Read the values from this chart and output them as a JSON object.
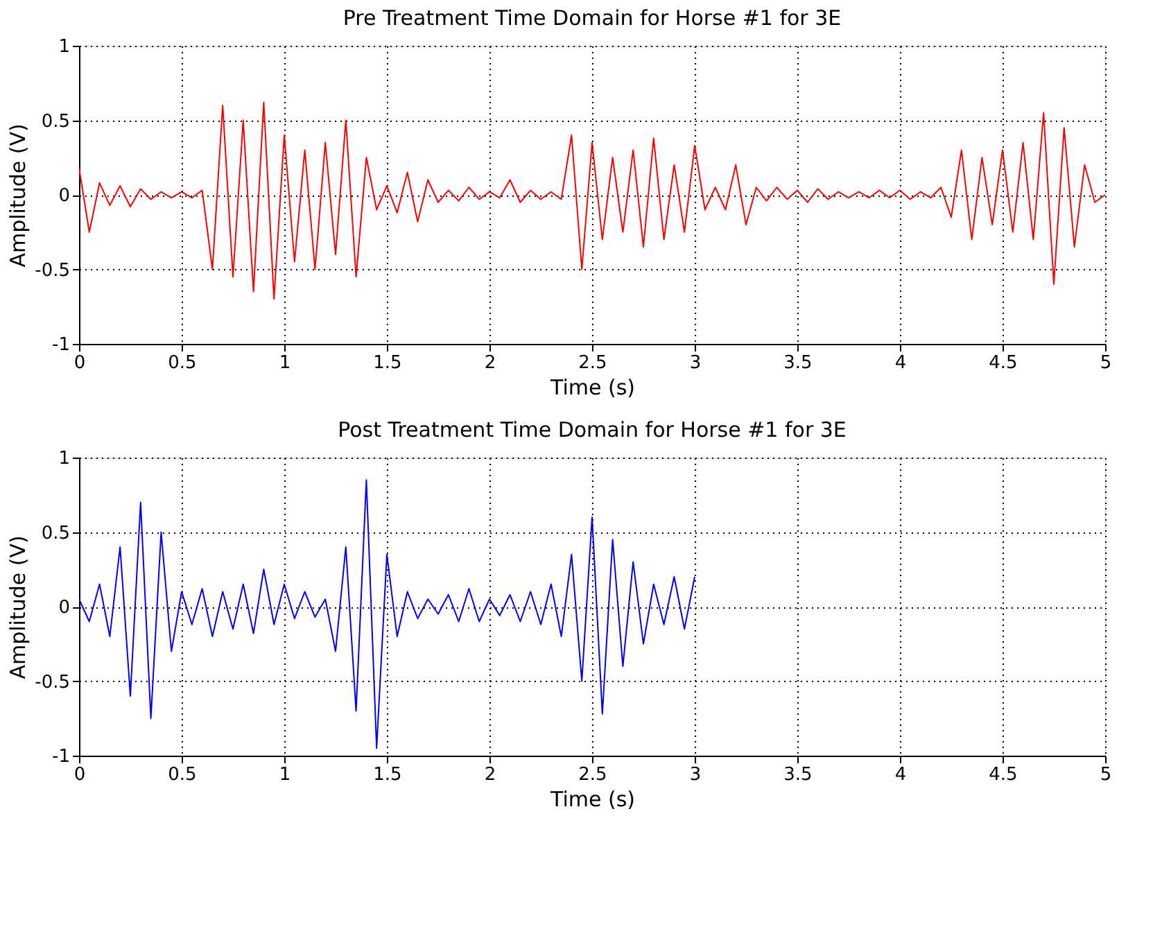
{
  "chart_data": [
    {
      "type": "line",
      "title": "Pre Treatment Time Domain for Horse #1 for 3E",
      "xlabel": "Time (s)",
      "ylabel": "Amplitude (V)",
      "xlim": [
        0,
        5
      ],
      "ylim": [
        -1,
        1
      ],
      "xticks": [
        0,
        0.5,
        1,
        1.5,
        2,
        2.5,
        3,
        3.5,
        4,
        4.5,
        5
      ],
      "yticks": [
        -1,
        -0.5,
        0,
        0.5,
        1
      ],
      "grid": true,
      "marker": "none",
      "line_style": "solid",
      "x": [
        0,
        0.05,
        0.1,
        0.15,
        0.2,
        0.25,
        0.3,
        0.35,
        0.4,
        0.45,
        0.5,
        0.55,
        0.6,
        0.65,
        0.7,
        0.75,
        0.8,
        0.85,
        0.9,
        0.95,
        1.0,
        1.05,
        1.1,
        1.15,
        1.2,
        1.25,
        1.3,
        1.35,
        1.4,
        1.45,
        1.5,
        1.55,
        1.6,
        1.65,
        1.7,
        1.75,
        1.8,
        1.85,
        1.9,
        1.95,
        2.0,
        2.05,
        2.1,
        2.15,
        2.2,
        2.25,
        2.3,
        2.35,
        2.4,
        2.45,
        2.5,
        2.55,
        2.6,
        2.65,
        2.7,
        2.75,
        2.8,
        2.85,
        2.9,
        2.95,
        3.0,
        3.05,
        3.1,
        3.15,
        3.2,
        3.25,
        3.3,
        3.35,
        3.4,
        3.45,
        3.5,
        3.55,
        3.6,
        3.65,
        3.7,
        3.75,
        3.8,
        3.85,
        3.9,
        3.95,
        4.0,
        4.05,
        4.1,
        4.15,
        4.2,
        4.25,
        4.3,
        4.35,
        4.4,
        4.45,
        4.5,
        4.55,
        4.6,
        4.65,
        4.7,
        4.75,
        4.8,
        4.85,
        4.9,
        4.95,
        5.0
      ],
      "series": [
        {
          "color": "#ff0000",
          "values": [
            0.18,
            -0.25,
            0.08,
            -0.07,
            0.06,
            -0.08,
            0.04,
            -0.03,
            0.02,
            -0.02,
            0.02,
            -0.02,
            0.03,
            -0.5,
            0.6,
            -0.55,
            0.5,
            -0.65,
            0.62,
            -0.7,
            0.4,
            -0.45,
            0.3,
            -0.5,
            0.35,
            -0.4,
            0.5,
            -0.55,
            0.25,
            -0.1,
            0.06,
            -0.12,
            0.15,
            -0.18,
            0.1,
            -0.05,
            0.03,
            -0.04,
            0.05,
            -0.03,
            0.02,
            -0.02,
            0.1,
            -0.05,
            0.03,
            -0.03,
            0.02,
            -0.03,
            0.4,
            -0.5,
            0.35,
            -0.3,
            0.25,
            -0.25,
            0.3,
            -0.35,
            0.38,
            -0.3,
            0.2,
            -0.25,
            0.33,
            -0.1,
            0.05,
            -0.1,
            0.2,
            -0.2,
            0.05,
            -0.04,
            0.05,
            -0.03,
            0.03,
            -0.05,
            0.04,
            -0.03,
            0.02,
            -0.02,
            0.02,
            -0.02,
            0.03,
            -0.02,
            0.03,
            -0.03,
            0.02,
            -0.02,
            0.05,
            -0.15,
            0.3,
            -0.3,
            0.25,
            -0.2,
            0.3,
            -0.25,
            0.35,
            -0.3,
            0.55,
            -0.6,
            0.45,
            -0.35,
            0.2,
            -0.05,
            0.0
          ]
        }
      ]
    },
    {
      "type": "line",
      "title": "Post Treatment Time Domain for Horse #1 for 3E",
      "xlabel": "Time (s)",
      "ylabel": "Amplitude (V)",
      "xlim": [
        0,
        5
      ],
      "ylim": [
        -1,
        1
      ],
      "xticks": [
        0,
        0.5,
        1,
        1.5,
        2,
        2.5,
        3,
        3.5,
        4,
        4.5,
        5
      ],
      "yticks": [
        -1,
        -0.5,
        0,
        0.5,
        1
      ],
      "grid": true,
      "marker": "none",
      "line_style": "solid",
      "x": [
        0,
        0.05,
        0.1,
        0.15,
        0.2,
        0.25,
        0.3,
        0.35,
        0.4,
        0.45,
        0.5,
        0.55,
        0.6,
        0.65,
        0.7,
        0.75,
        0.8,
        0.85,
        0.9,
        0.95,
        1.0,
        1.05,
        1.1,
        1.15,
        1.2,
        1.25,
        1.3,
        1.35,
        1.4,
        1.45,
        1.5,
        1.55,
        1.6,
        1.65,
        1.7,
        1.75,
        1.8,
        1.85,
        1.9,
        1.95,
        2.0,
        2.05,
        2.1,
        2.15,
        2.2,
        2.25,
        2.3,
        2.35,
        2.4,
        2.45,
        2.5,
        2.55,
        2.6,
        2.65,
        2.7,
        2.75,
        2.8,
        2.85,
        2.9,
        2.95,
        3.0
      ],
      "series": [
        {
          "color": "#0000ff",
          "values": [
            0.05,
            -0.1,
            0.15,
            -0.2,
            0.4,
            -0.6,
            0.7,
            -0.75,
            0.5,
            -0.3,
            0.1,
            -0.12,
            0.12,
            -0.2,
            0.1,
            -0.15,
            0.15,
            -0.18,
            0.25,
            -0.12,
            0.15,
            -0.08,
            0.1,
            -0.07,
            0.05,
            -0.3,
            0.4,
            -0.7,
            0.85,
            -0.95,
            0.35,
            -0.2,
            0.1,
            -0.08,
            0.05,
            -0.05,
            0.08,
            -0.1,
            0.12,
            -0.1,
            0.05,
            -0.06,
            0.08,
            -0.1,
            0.1,
            -0.12,
            0.15,
            -0.2,
            0.35,
            -0.5,
            0.6,
            -0.72,
            0.45,
            -0.4,
            0.3,
            -0.25,
            0.15,
            -0.12,
            0.2,
            -0.15,
            0.2
          ]
        }
      ]
    }
  ]
}
